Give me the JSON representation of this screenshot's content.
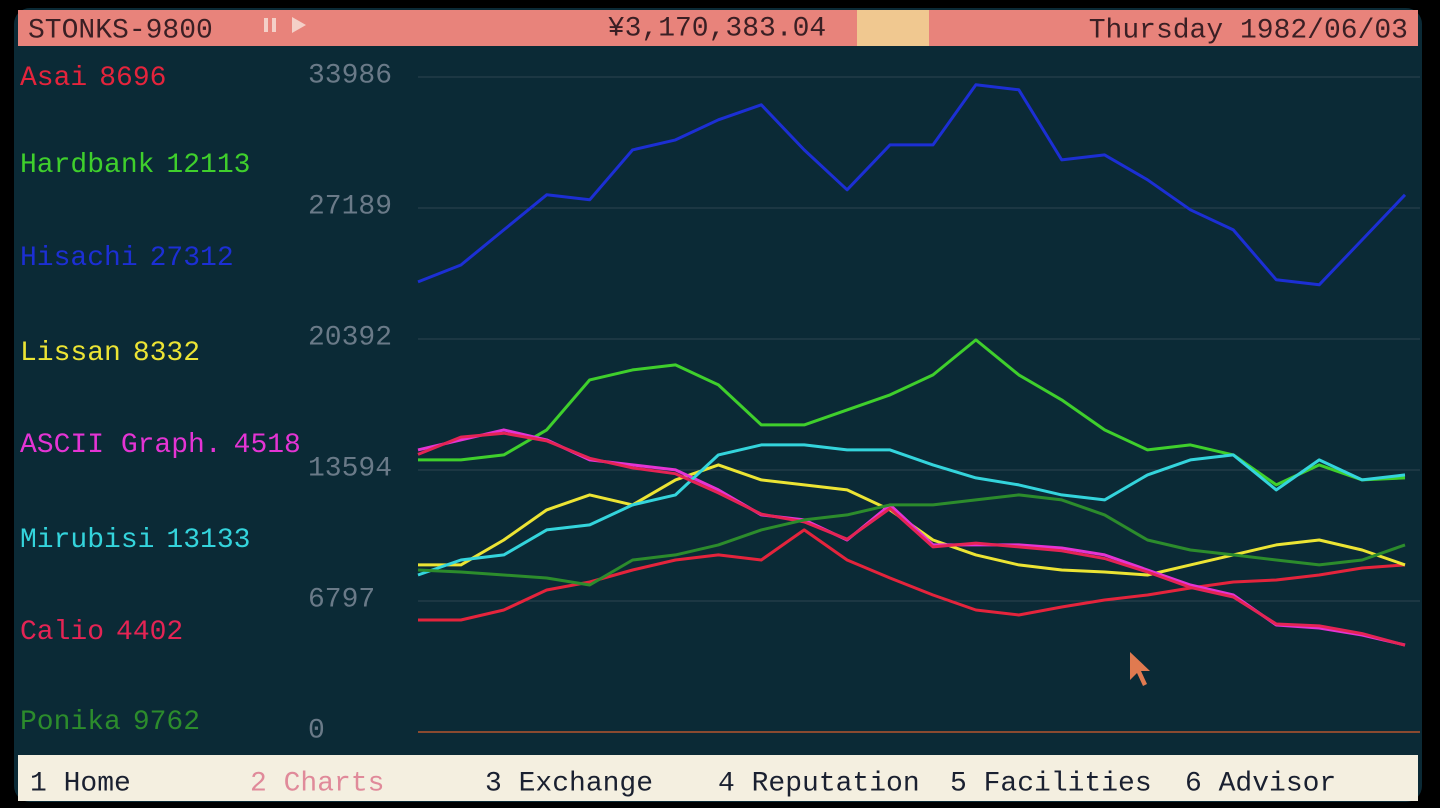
{
  "header": {
    "app": "STONKS-9800",
    "money": "¥3,170,383.04",
    "date": "Thursday 1982/06/03"
  },
  "chart_data": {
    "type": "line",
    "ylim": [
      0,
      33986
    ],
    "yticks": [
      0,
      6797,
      13594,
      20392,
      27189,
      33986
    ],
    "grid": true,
    "series": [
      {
        "name": "Asai",
        "price": 8696,
        "color": "#e4243c",
        "values": [
          5709,
          5709,
          6228,
          7266,
          7681,
          8304,
          8823,
          9083,
          8823,
          10380,
          8823,
          7889,
          7007,
          6228,
          5969,
          6384,
          6747,
          7007,
          7370,
          7681,
          7785,
          8045,
          8408,
          8564
        ]
      },
      {
        "name": "Hardbank",
        "price": 12113,
        "color": "#3fcf2c",
        "values": [
          14013,
          14013,
          14273,
          15570,
          18165,
          18684,
          18944,
          17906,
          15830,
          15830,
          16608,
          17387,
          18425,
          20241,
          18425,
          17127,
          15570,
          14532,
          14792,
          14273,
          12716,
          13754,
          12975,
          13079
        ]
      },
      {
        "name": "Hisachi",
        "price": 27312,
        "color": "#1c2fd4",
        "values": [
          23250,
          24130,
          25950,
          27770,
          27510,
          30100,
          30620,
          31660,
          32440,
          30100,
          28030,
          30360,
          30360,
          33480,
          33220,
          29580,
          29840,
          28550,
          26990,
          25950,
          23360,
          23100,
          25430,
          27770
        ]
      },
      {
        "name": "Lissan",
        "price": 8332,
        "color": "#ece434",
        "values": [
          8564,
          8564,
          9861,
          11418,
          12197,
          11678,
          12975,
          13754,
          12975,
          12716,
          12456,
          11418,
          9861,
          9083,
          8564,
          8304,
          8200,
          8045,
          8564,
          9083,
          9602,
          9861,
          9342,
          8564
        ]
      },
      {
        "name": "ASCII Graph.",
        "price": 4518,
        "color": "#e434d4",
        "values": [
          14532,
          15051,
          15570,
          15051,
          14013,
          13754,
          13494,
          12456,
          11159,
          10899,
          9861,
          11678,
          9602,
          9602,
          9602,
          9446,
          9083,
          8304,
          7526,
          7007,
          5450,
          5294,
          4931,
          4412
        ]
      },
      {
        "name": "Mirubisi",
        "price": 13133,
        "color": "#34d4dc",
        "values": [
          8045,
          8823,
          9083,
          10380,
          10640,
          11678,
          12197,
          14273,
          14792,
          14792,
          14532,
          14532,
          13754,
          13079,
          12716,
          12197,
          11937,
          13235,
          14013,
          14273,
          12456,
          14013,
          12975,
          13235
        ]
      },
      {
        "name": "Calio",
        "price": 4402,
        "color": "#e42454",
        "values": [
          14300,
          15200,
          15400,
          15000,
          14100,
          13600,
          13300,
          12300,
          11200,
          10800,
          9900,
          11500,
          9500,
          9700,
          9500,
          9300,
          8900,
          8200,
          7400,
          6900,
          5500,
          5400,
          5000,
          4400
        ]
      },
      {
        "name": "Ponika",
        "price": 9762,
        "color": "#2c8c2c",
        "values": [
          8304,
          8200,
          8045,
          7889,
          7526,
          8823,
          9083,
          9602,
          10380,
          10899,
          11159,
          11678,
          11678,
          11937,
          12197,
          11937,
          11159,
          9861,
          9342,
          9083,
          8823,
          8564,
          8823,
          9602
        ]
      }
    ]
  },
  "menu": [
    "1 Home",
    "2 Charts",
    "3 Exchange",
    "4 Reputation",
    "5 Facilities",
    "6 Advisor"
  ],
  "active_menu": 1
}
